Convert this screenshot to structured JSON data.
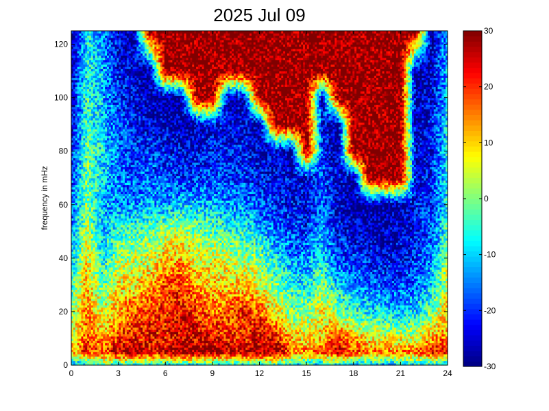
{
  "chart_data": {
    "type": "heatmap",
    "title": "2025 Jul 09",
    "xlabel": "",
    "ylabel": "frequency in mHz",
    "xlim": [
      0,
      24
    ],
    "ylim": [
      0,
      125
    ],
    "x_ticks": [
      0,
      3,
      6,
      9,
      12,
      15,
      18,
      21,
      24
    ],
    "y_ticks": [
      0,
      20,
      40,
      60,
      80,
      100,
      120
    ],
    "colorbar": {
      "colormap": "jet",
      "clim": [
        -30,
        30
      ],
      "ticks": [
        -30,
        -20,
        -10,
        0,
        10,
        20,
        30
      ]
    },
    "x_hours": [
      0,
      1,
      2,
      3,
      4,
      5,
      6,
      7,
      8,
      9,
      10,
      11,
      12,
      13,
      14,
      15,
      16,
      17,
      18,
      19,
      20,
      21,
      22,
      23,
      24
    ],
    "y_freq_mhz": [
      0,
      5,
      10,
      20,
      30,
      40,
      50,
      60,
      70,
      80,
      90,
      100,
      110,
      125
    ],
    "z_power": [
      [
        -14,
        -10,
        -3,
        -10,
        -8,
        -10,
        -10,
        -10,
        -8,
        -8,
        -9,
        -8,
        -10,
        -6,
        -10,
        -8,
        -10,
        -10,
        -12,
        -11,
        -12,
        -10,
        -9,
        -10,
        -12
      ],
      [
        10,
        22,
        18,
        28,
        29,
        25,
        26,
        30,
        29,
        30,
        26,
        26,
        30,
        30,
        18,
        15,
        18,
        26,
        20,
        16,
        14,
        14,
        16,
        24,
        24
      ],
      [
        6,
        18,
        12,
        20,
        22,
        22,
        22,
        25,
        24,
        24,
        20,
        20,
        24,
        22,
        12,
        8,
        10,
        20,
        12,
        8,
        6,
        6,
        6,
        12,
        16
      ],
      [
        2,
        15,
        5,
        12,
        18,
        20,
        20,
        24,
        20,
        16,
        18,
        22,
        18,
        8,
        0,
        0,
        8,
        0,
        -5,
        -8,
        -8,
        -10,
        -10,
        0,
        10
      ],
      [
        -5,
        12,
        -2,
        8,
        8,
        12,
        18,
        20,
        12,
        10,
        10,
        10,
        6,
        0,
        -5,
        -8,
        0,
        -10,
        -14,
        -16,
        -18,
        -18,
        -16,
        -10,
        6
      ],
      [
        -10,
        8,
        -8,
        2,
        3,
        5,
        10,
        12,
        6,
        6,
        4,
        2,
        0,
        -8,
        -14,
        -14,
        -8,
        -18,
        -20,
        -22,
        -24,
        -24,
        -20,
        -14,
        2
      ],
      [
        -14,
        4,
        -12,
        -4,
        -4,
        -2,
        2,
        4,
        0,
        -2,
        -5,
        -6,
        -10,
        -16,
        -18,
        -20,
        -12,
        -22,
        -24,
        -26,
        -27,
        -26,
        -22,
        -18,
        -4
      ],
      [
        -17,
        0,
        -12,
        -14,
        -14,
        -12,
        -12,
        -10,
        -10,
        -12,
        -14,
        -14,
        -18,
        -20,
        -22,
        -24,
        -16,
        -24,
        -30,
        -30,
        -30,
        -28,
        -22,
        -20,
        -8
      ],
      [
        -20,
        0,
        -10,
        -16,
        -18,
        -16,
        -18,
        -20,
        -20,
        -18,
        -20,
        -20,
        -22,
        -22,
        -24,
        -26,
        -18,
        -24,
        -30,
        30,
        30,
        30,
        -24,
        -20,
        -8
      ],
      [
        -22,
        -2,
        -8,
        -16,
        -20,
        -20,
        -22,
        -24,
        -24,
        -22,
        -22,
        -22,
        -26,
        -26,
        -30,
        30,
        -20,
        -28,
        30,
        30,
        30,
        30,
        -26,
        -22,
        -8
      ],
      [
        -24,
        -4,
        -10,
        -18,
        -22,
        -24,
        -26,
        -28,
        -28,
        -24,
        -24,
        -24,
        -30,
        30,
        30,
        30,
        -22,
        -30,
        30,
        30,
        30,
        30,
        -28,
        -22,
        -8
      ],
      [
        -26,
        -5,
        -12,
        -20,
        -24,
        -28,
        -30,
        -30,
        30,
        30,
        -28,
        -28,
        30,
        30,
        30,
        30,
        -26,
        30,
        30,
        30,
        30,
        30,
        -28,
        -24,
        -10
      ],
      [
        -26,
        -6,
        -12,
        -22,
        -26,
        -30,
        30,
        30,
        30,
        30,
        30,
        30,
        30,
        30,
        30,
        30,
        30,
        30,
        30,
        30,
        30,
        30,
        -30,
        -26,
        -10
      ],
      [
        -28,
        -8,
        -14,
        -24,
        -28,
        30,
        30,
        30,
        30,
        30,
        30,
        30,
        30,
        30,
        30,
        30,
        30,
        30,
        30,
        30,
        30,
        30,
        30,
        -28,
        -12
      ]
    ]
  }
}
